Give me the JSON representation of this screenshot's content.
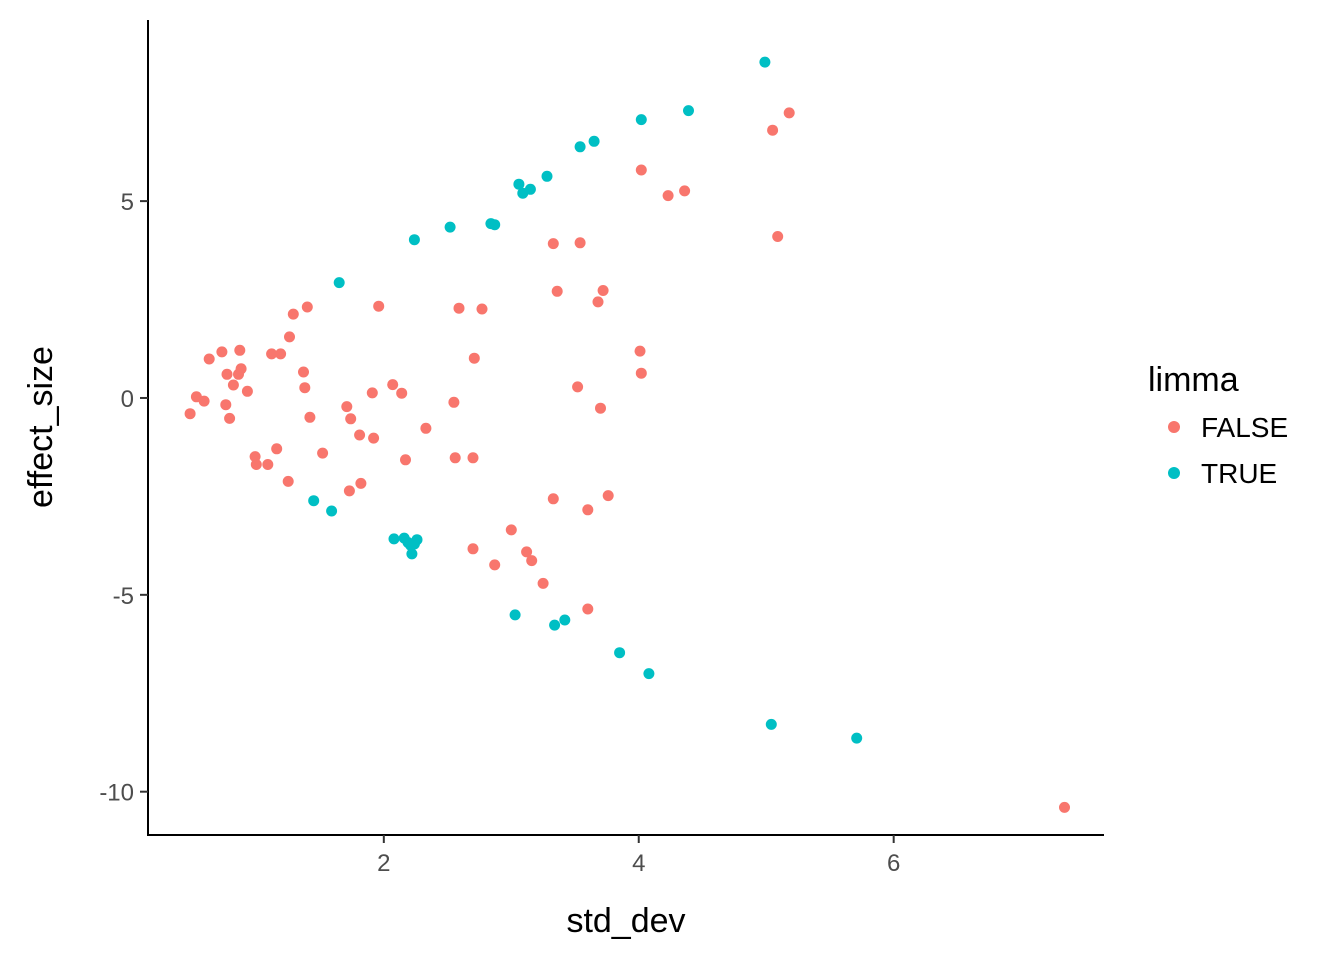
{
  "chart_data": {
    "type": "scatter",
    "title": "",
    "xlabel": "std_dev",
    "ylabel": "effect_size",
    "xlim": [
      0.15,
      7.65
    ],
    "ylim": [
      -11.1,
      9.6
    ],
    "x_ticks": [
      2,
      4,
      6
    ],
    "x_tick_labels": [
      "2",
      "4",
      "6"
    ],
    "y_ticks": [
      -10,
      -5,
      0,
      5
    ],
    "y_tick_labels": [
      "-10",
      "-5",
      "0",
      "5"
    ],
    "grid": false,
    "legend": {
      "title": "limma",
      "position": "right"
    },
    "series": [
      {
        "name": "FALSE",
        "color": "#F8766D",
        "points": [
          [
            0.48,
            -0.4
          ],
          [
            0.53,
            0.03
          ],
          [
            0.59,
            -0.08
          ],
          [
            0.63,
            0.99
          ],
          [
            0.73,
            1.17
          ],
          [
            0.76,
            -0.17
          ],
          [
            0.77,
            0.6
          ],
          [
            0.79,
            -0.52
          ],
          [
            0.82,
            0.33
          ],
          [
            0.86,
            0.6
          ],
          [
            0.87,
            1.21
          ],
          [
            0.88,
            0.74
          ],
          [
            0.93,
            0.17
          ],
          [
            0.99,
            -1.49
          ],
          [
            1.0,
            -1.69
          ],
          [
            1.09,
            -1.69
          ],
          [
            1.12,
            1.12
          ],
          [
            1.16,
            -1.29
          ],
          [
            1.19,
            1.12
          ],
          [
            1.25,
            -2.12
          ],
          [
            1.26,
            1.55
          ],
          [
            1.29,
            2.13
          ],
          [
            1.37,
            0.66
          ],
          [
            1.38,
            0.26
          ],
          [
            1.4,
            2.31
          ],
          [
            1.42,
            -0.49
          ],
          [
            1.52,
            -1.4
          ],
          [
            1.71,
            -0.22
          ],
          [
            1.73,
            -2.36
          ],
          [
            1.74,
            -0.53
          ],
          [
            1.81,
            -0.94
          ],
          [
            1.82,
            -2.17
          ],
          [
            1.91,
            0.13
          ],
          [
            1.92,
            -1.02
          ],
          [
            1.96,
            2.33
          ],
          [
            2.07,
            0.34
          ],
          [
            2.14,
            0.12
          ],
          [
            2.17,
            -1.57
          ],
          [
            2.33,
            -0.77
          ],
          [
            2.55,
            -0.11
          ],
          [
            2.56,
            -1.52
          ],
          [
            2.59,
            2.28
          ],
          [
            2.7,
            -1.52
          ],
          [
            2.7,
            -3.83
          ],
          [
            2.71,
            1.01
          ],
          [
            2.77,
            2.26
          ],
          [
            2.87,
            -4.24
          ],
          [
            3.0,
            -3.35
          ],
          [
            3.12,
            -3.91
          ],
          [
            3.16,
            -4.13
          ],
          [
            3.25,
            -4.71
          ],
          [
            3.33,
            -2.56
          ],
          [
            3.33,
            3.92
          ],
          [
            3.36,
            2.71
          ],
          [
            3.52,
            0.28
          ],
          [
            3.54,
            3.94
          ],
          [
            3.6,
            -2.84
          ],
          [
            3.6,
            -5.36
          ],
          [
            3.68,
            2.44
          ],
          [
            3.7,
            -0.26
          ],
          [
            3.72,
            2.73
          ],
          [
            3.76,
            -2.48
          ],
          [
            4.01,
            1.19
          ],
          [
            4.02,
            0.63
          ],
          [
            4.02,
            5.79
          ],
          [
            4.23,
            5.14
          ],
          [
            4.36,
            5.26
          ],
          [
            5.05,
            6.8
          ],
          [
            5.09,
            4.1
          ],
          [
            5.18,
            7.24
          ],
          [
            7.34,
            -10.4
          ]
        ]
      },
      {
        "name": "TRUE",
        "color": "#00BFC4",
        "points": [
          [
            1.45,
            -2.61
          ],
          [
            1.59,
            -2.87
          ],
          [
            1.65,
            2.93
          ],
          [
            2.08,
            -3.58
          ],
          [
            2.16,
            -3.56
          ],
          [
            2.19,
            -3.67
          ],
          [
            2.21,
            -3.74
          ],
          [
            2.22,
            -3.96
          ],
          [
            2.24,
            4.02
          ],
          [
            2.24,
            -3.71
          ],
          [
            2.26,
            -3.6
          ],
          [
            2.52,
            4.34
          ],
          [
            2.84,
            4.43
          ],
          [
            2.87,
            4.4
          ],
          [
            3.03,
            -5.51
          ],
          [
            3.06,
            5.43
          ],
          [
            3.09,
            5.2
          ],
          [
            3.15,
            5.3
          ],
          [
            3.28,
            5.63
          ],
          [
            3.34,
            -5.77
          ],
          [
            3.42,
            -5.64
          ],
          [
            3.54,
            6.38
          ],
          [
            3.65,
            6.52
          ],
          [
            3.85,
            -6.47
          ],
          [
            4.02,
            7.07
          ],
          [
            4.08,
            -7.0
          ],
          [
            4.39,
            7.3
          ],
          [
            4.99,
            8.53
          ],
          [
            5.04,
            -8.29
          ],
          [
            5.71,
            -8.64
          ]
        ]
      }
    ]
  }
}
